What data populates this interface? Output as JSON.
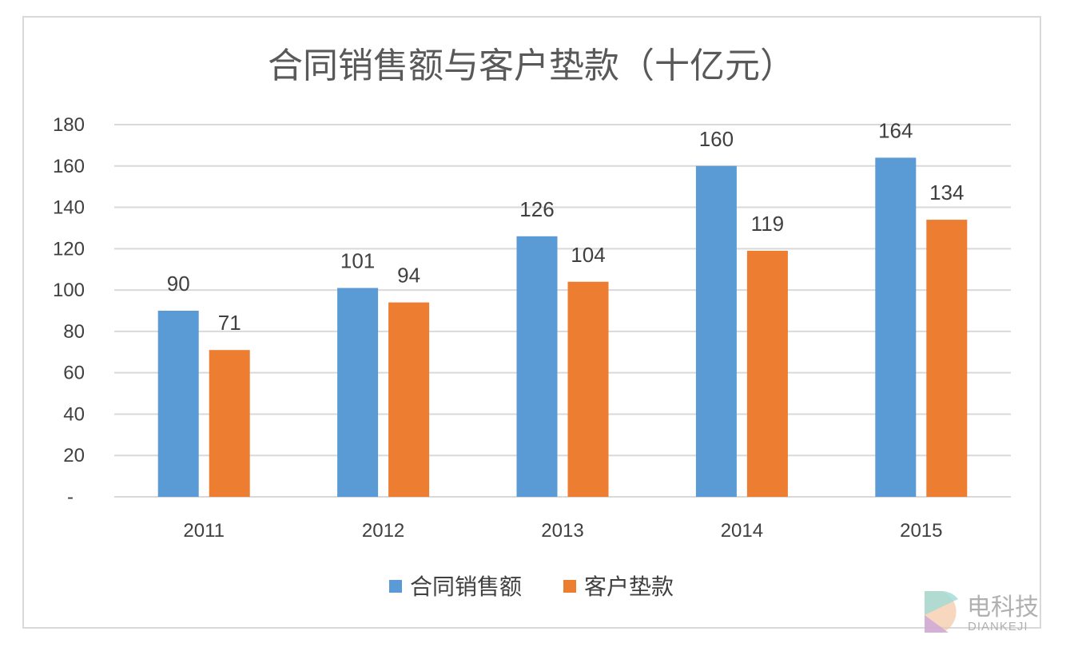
{
  "chart_data": {
    "type": "bar",
    "title": "合同销售额与客户垫款（十亿元）",
    "categories": [
      "2011",
      "2012",
      "2013",
      "2014",
      "2015"
    ],
    "series": [
      {
        "name": "合同销售额",
        "color": "#5b9bd5",
        "values": [
          90,
          101,
          126,
          160,
          164
        ]
      },
      {
        "name": "客户垫款",
        "color": "#ed7d31",
        "values": [
          71,
          94,
          104,
          119,
          134
        ]
      }
    ],
    "yticks": [
      "-",
      "20",
      "40",
      "60",
      "80",
      "100",
      "120",
      "140",
      "160",
      "180"
    ],
    "ylim": [
      0,
      180
    ],
    "grid": true,
    "legend": "bottom",
    "xlabel": "",
    "ylabel": ""
  },
  "watermark": {
    "cn": "电科技",
    "en": "DIANKEJI"
  }
}
